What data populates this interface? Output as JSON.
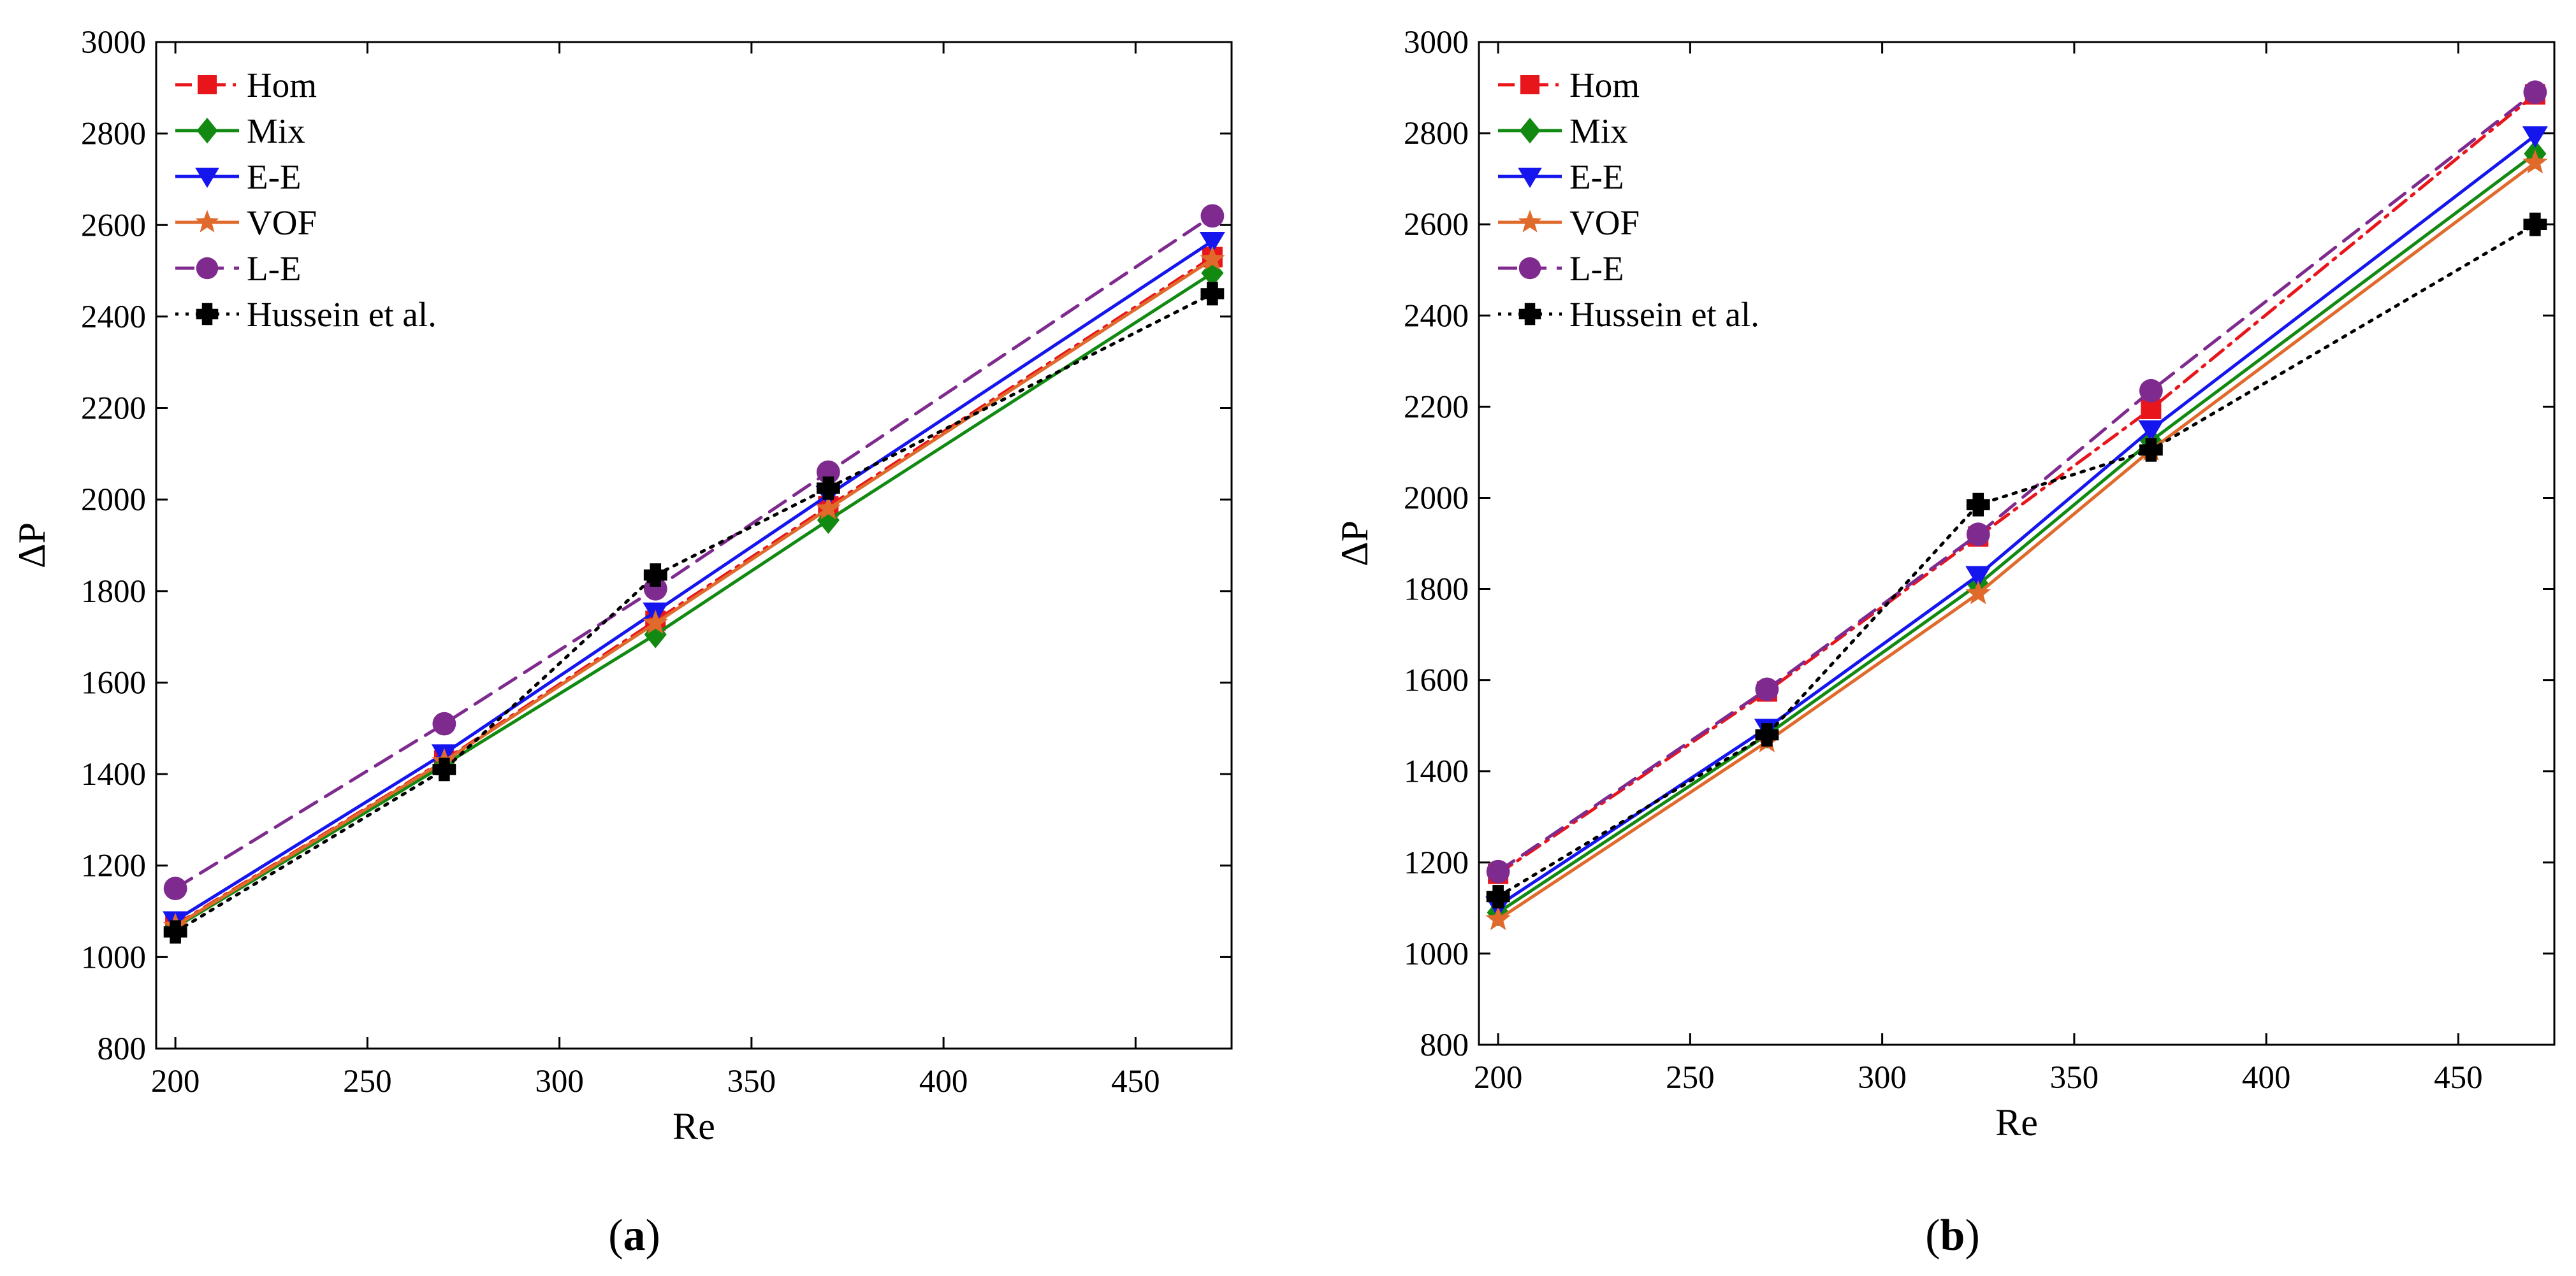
{
  "chart_data": [
    {
      "panel_label": "a",
      "type": "line",
      "xlabel": "Re",
      "ylabel": "ΔP",
      "xlim": [
        195,
        475
      ],
      "ylim": [
        800,
        3000
      ],
      "xticks": [
        200,
        250,
        300,
        350,
        400,
        450
      ],
      "yticks": [
        800,
        1000,
        1200,
        1400,
        1600,
        1800,
        2000,
        2200,
        2400,
        2600,
        2800,
        3000
      ],
      "legend_position": "top-left",
      "x": [
        200,
        270,
        325,
        370,
        470
      ],
      "series": [
        {
          "name": "Hom",
          "values": [
            1070,
            1430,
            1735,
            1985,
            2530
          ],
          "color": "#e8151b",
          "dash": "dashdot",
          "marker": "square"
        },
        {
          "name": "Mix",
          "values": [
            1065,
            1420,
            1705,
            1955,
            2495
          ],
          "color": "#128a12",
          "dash": "solid",
          "marker": "diamond"
        },
        {
          "name": "E-E",
          "values": [
            1080,
            1445,
            1755,
            2010,
            2565
          ],
          "color": "#1515ee",
          "dash": "solid",
          "marker": "triangle-down"
        },
        {
          "name": "VOF",
          "values": [
            1068,
            1428,
            1730,
            1980,
            2525
          ],
          "color": "#e06a2c",
          "dash": "solid",
          "marker": "star"
        },
        {
          "name": "L-E",
          "values": [
            1150,
            1510,
            1805,
            2060,
            2620
          ],
          "color": "#7e2a8e",
          "dash": "dash",
          "marker": "circle"
        },
        {
          "name": "Hussein et al.",
          "values": [
            1055,
            1410,
            1835,
            2025,
            2450
          ],
          "color": "#000000",
          "dash": "dot",
          "marker": "cross"
        }
      ]
    },
    {
      "panel_label": "b",
      "type": "line",
      "xlabel": "Re",
      "ylabel": "ΔP",
      "xlim": [
        195,
        475
      ],
      "ylim": [
        800,
        3000
      ],
      "xticks": [
        200,
        250,
        300,
        350,
        400,
        450
      ],
      "yticks": [
        800,
        1000,
        1200,
        1400,
        1600,
        1800,
        2000,
        2200,
        2400,
        2600,
        2800,
        3000
      ],
      "legend_position": "top-left",
      "x": [
        200,
        270,
        325,
        370,
        470
      ],
      "series": [
        {
          "name": "Hom",
          "values": [
            1175,
            1575,
            1915,
            2195,
            2885
          ],
          "color": "#e8151b",
          "dash": "dashdot",
          "marker": "square"
        },
        {
          "name": "Mix",
          "values": [
            1090,
            1480,
            1810,
            2125,
            2755
          ],
          "color": "#128a12",
          "dash": "solid",
          "marker": "diamond"
        },
        {
          "name": "E-E",
          "values": [
            1105,
            1495,
            1830,
            2150,
            2795
          ],
          "color": "#1515ee",
          "dash": "solid",
          "marker": "triangle-down"
        },
        {
          "name": "VOF",
          "values": [
            1075,
            1465,
            1790,
            2105,
            2735
          ],
          "color": "#e06a2c",
          "dash": "solid",
          "marker": "star"
        },
        {
          "name": "L-E",
          "values": [
            1180,
            1580,
            1920,
            2235,
            2890
          ],
          "color": "#7e2a8e",
          "dash": "dash",
          "marker": "circle"
        },
        {
          "name": "Hussein et al.",
          "values": [
            1125,
            1480,
            1985,
            2105,
            2600
          ],
          "color": "#000000",
          "dash": "dot",
          "marker": "cross"
        }
      ]
    }
  ]
}
